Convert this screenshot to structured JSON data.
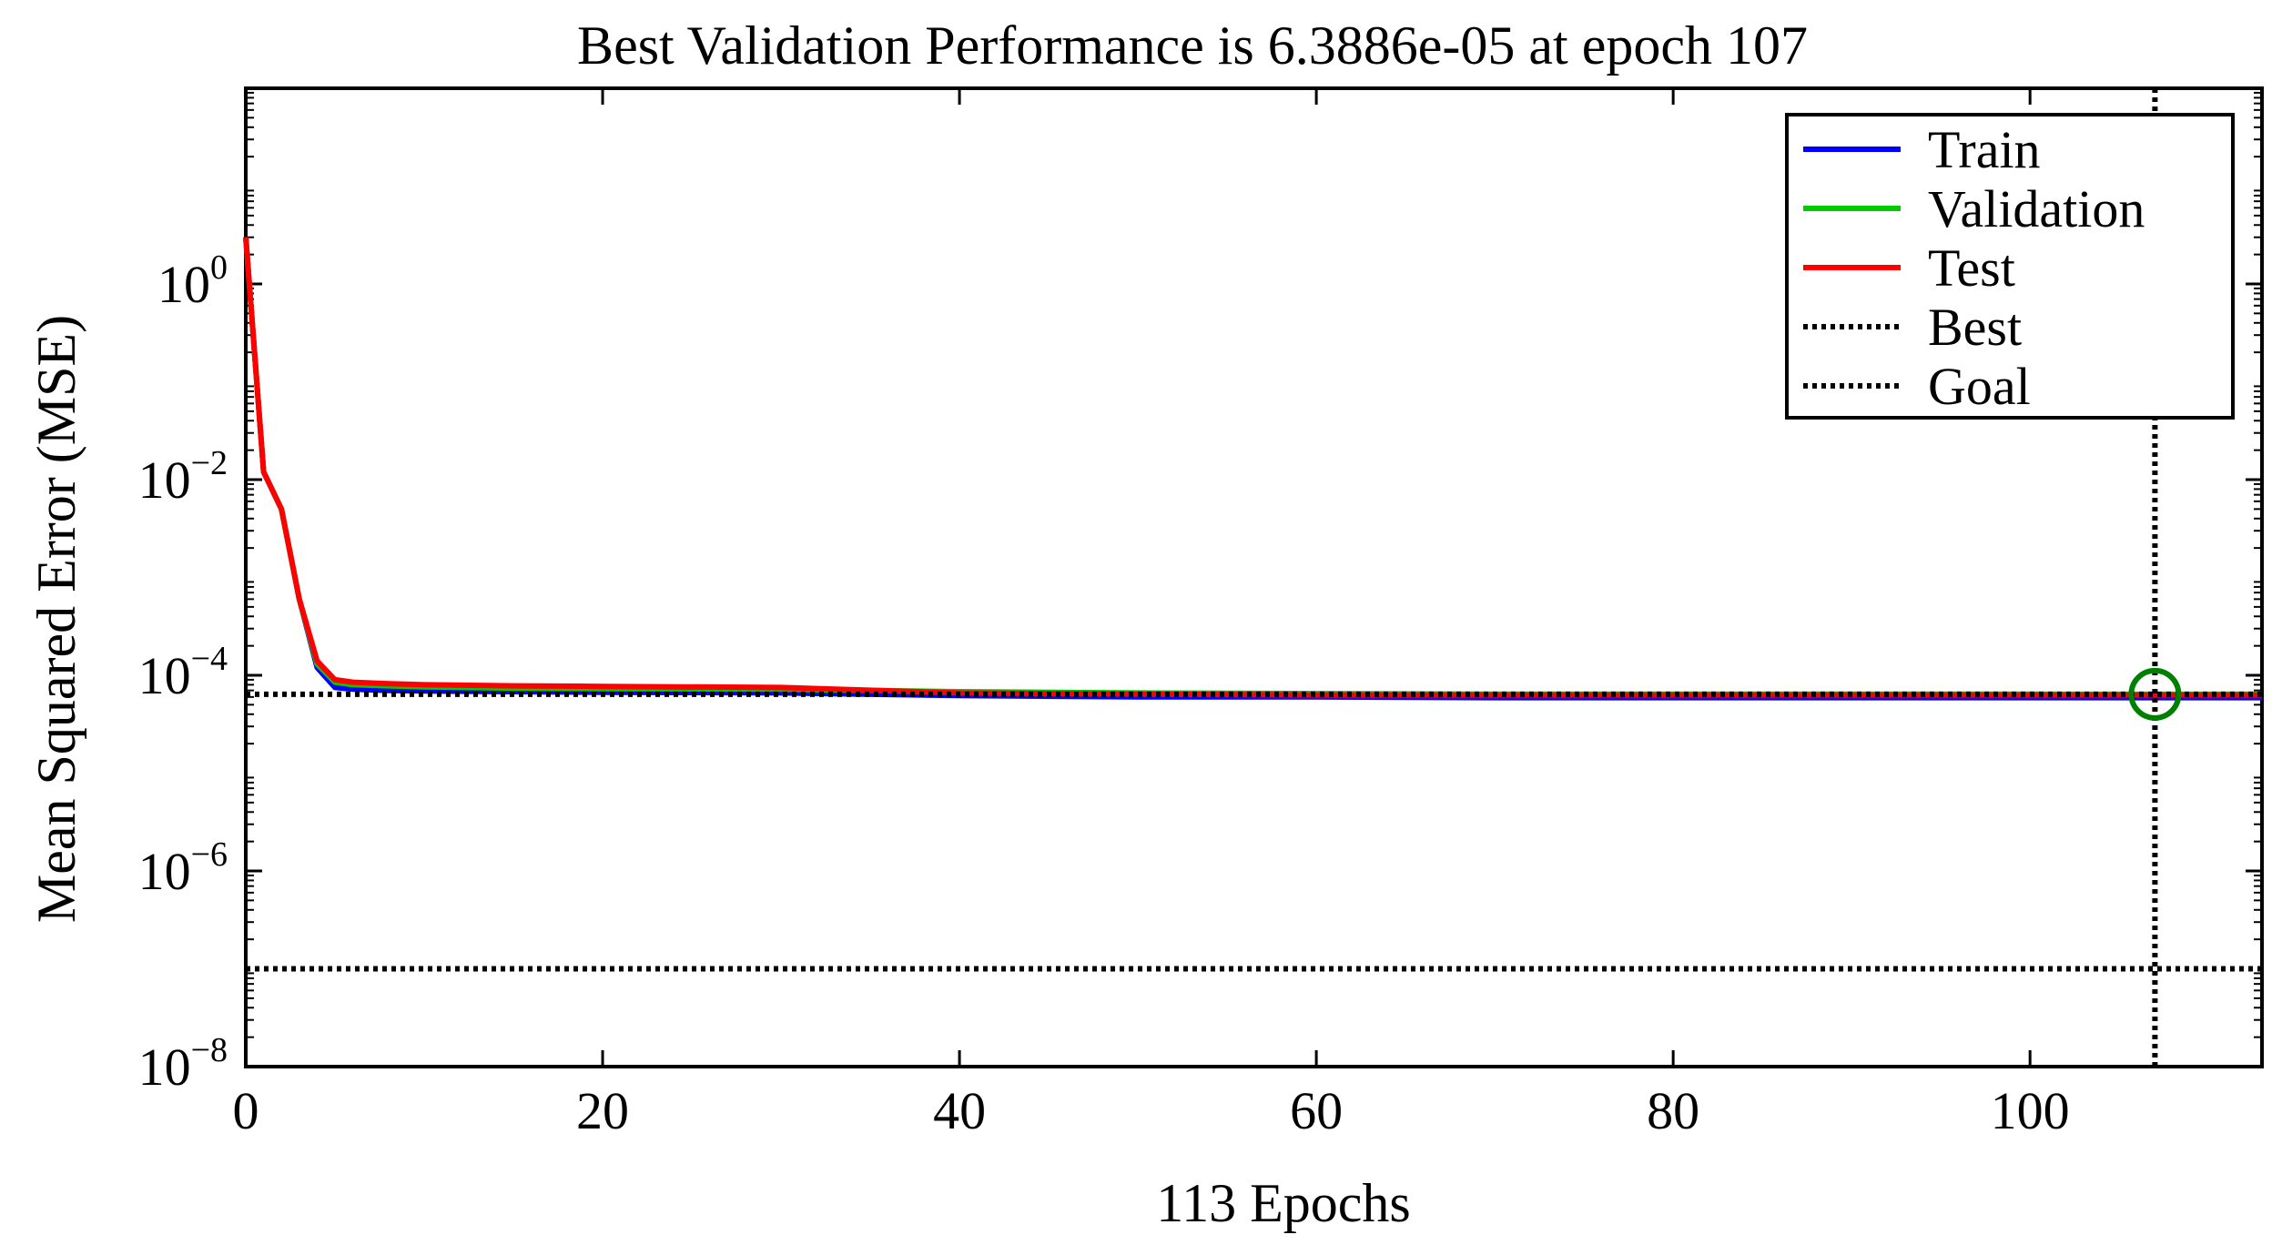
{
  "chart_data": {
    "type": "line",
    "title": "Best Validation Performance is 6.3886e-05 at epoch 107",
    "xlabel": "113 Epochs",
    "ylabel": "Mean Squared Error  (MSE)",
    "xlim": [
      0,
      113
    ],
    "ylim": [
      1e-08,
      100
    ],
    "yscale": "log",
    "xticks": [
      0,
      20,
      40,
      60,
      80,
      100
    ],
    "xtick_labels": [
      "0",
      "20",
      "40",
      "60",
      "80",
      "100"
    ],
    "yticks": [
      1e-08,
      1e-06,
      0.0001,
      0.01,
      1
    ],
    "ytick_labels": [
      {
        "base": "10",
        "exp": "−8"
      },
      {
        "base": "10",
        "exp": "−6"
      },
      {
        "base": "10",
        "exp": "−4"
      },
      {
        "base": "10",
        "exp": "−2"
      },
      {
        "base": "10",
        "exp": "0"
      }
    ],
    "grid": false,
    "legend_position": "top-right",
    "series": [
      {
        "name": "Train",
        "color": "#0000ff",
        "x": [
          0,
          1,
          2,
          3,
          4,
          5,
          6,
          8,
          10,
          15,
          20,
          30,
          40,
          50,
          60,
          70,
          80,
          90,
          100,
          107,
          113
        ],
        "y": [
          3,
          0.012,
          0.005,
          0.0006,
          0.00012,
          7.5e-05,
          7.2e-05,
          7e-05,
          6.9e-05,
          6.8e-05,
          6.7e-05,
          6.6e-05,
          6.2e-05,
          6e-05,
          6e-05,
          5.9e-05,
          5.9e-05,
          5.9e-05,
          5.9e-05,
          5.9e-05,
          5.9e-05
        ]
      },
      {
        "name": "Validation",
        "color": "#00cc00",
        "x": [
          0,
          1,
          2,
          3,
          4,
          5,
          6,
          8,
          10,
          15,
          20,
          30,
          40,
          50,
          60,
          70,
          80,
          90,
          100,
          107,
          113
        ],
        "y": [
          3,
          0.012,
          0.005,
          0.0006,
          0.00013,
          8.5e-05,
          8e-05,
          7.8e-05,
          7.6e-05,
          7.4e-05,
          7.3e-05,
          7.2e-05,
          6.8e-05,
          6.6e-05,
          6.5e-05,
          6.4e-05,
          6.4e-05,
          6.4e-05,
          6.4e-05,
          6.3886e-05,
          6.4e-05
        ]
      },
      {
        "name": "Test",
        "color": "#ff0000",
        "x": [
          0,
          1,
          2,
          3,
          4,
          5,
          6,
          8,
          10,
          15,
          20,
          30,
          40,
          50,
          60,
          70,
          80,
          90,
          100,
          107,
          113
        ],
        "y": [
          3,
          0.012,
          0.005,
          0.0006,
          0.00014,
          9e-05,
          8.5e-05,
          8.2e-05,
          8e-05,
          7.8e-05,
          7.7e-05,
          7.5e-05,
          6.6e-05,
          6.4e-05,
          6.3e-05,
          6.3e-05,
          6.3e-05,
          6.3e-05,
          6.3e-05,
          6.3e-05,
          6.3e-05
        ]
      }
    ],
    "reference_lines": [
      {
        "name": "Best",
        "orientation": "horizontal",
        "value": 6.3886e-05
      },
      {
        "name": "Best",
        "orientation": "vertical",
        "value": 107
      },
      {
        "name": "Goal",
        "orientation": "horizontal",
        "value": 1e-07
      }
    ],
    "best_marker": {
      "x": 107,
      "y": 6.3886e-05,
      "color": "#008000"
    }
  }
}
